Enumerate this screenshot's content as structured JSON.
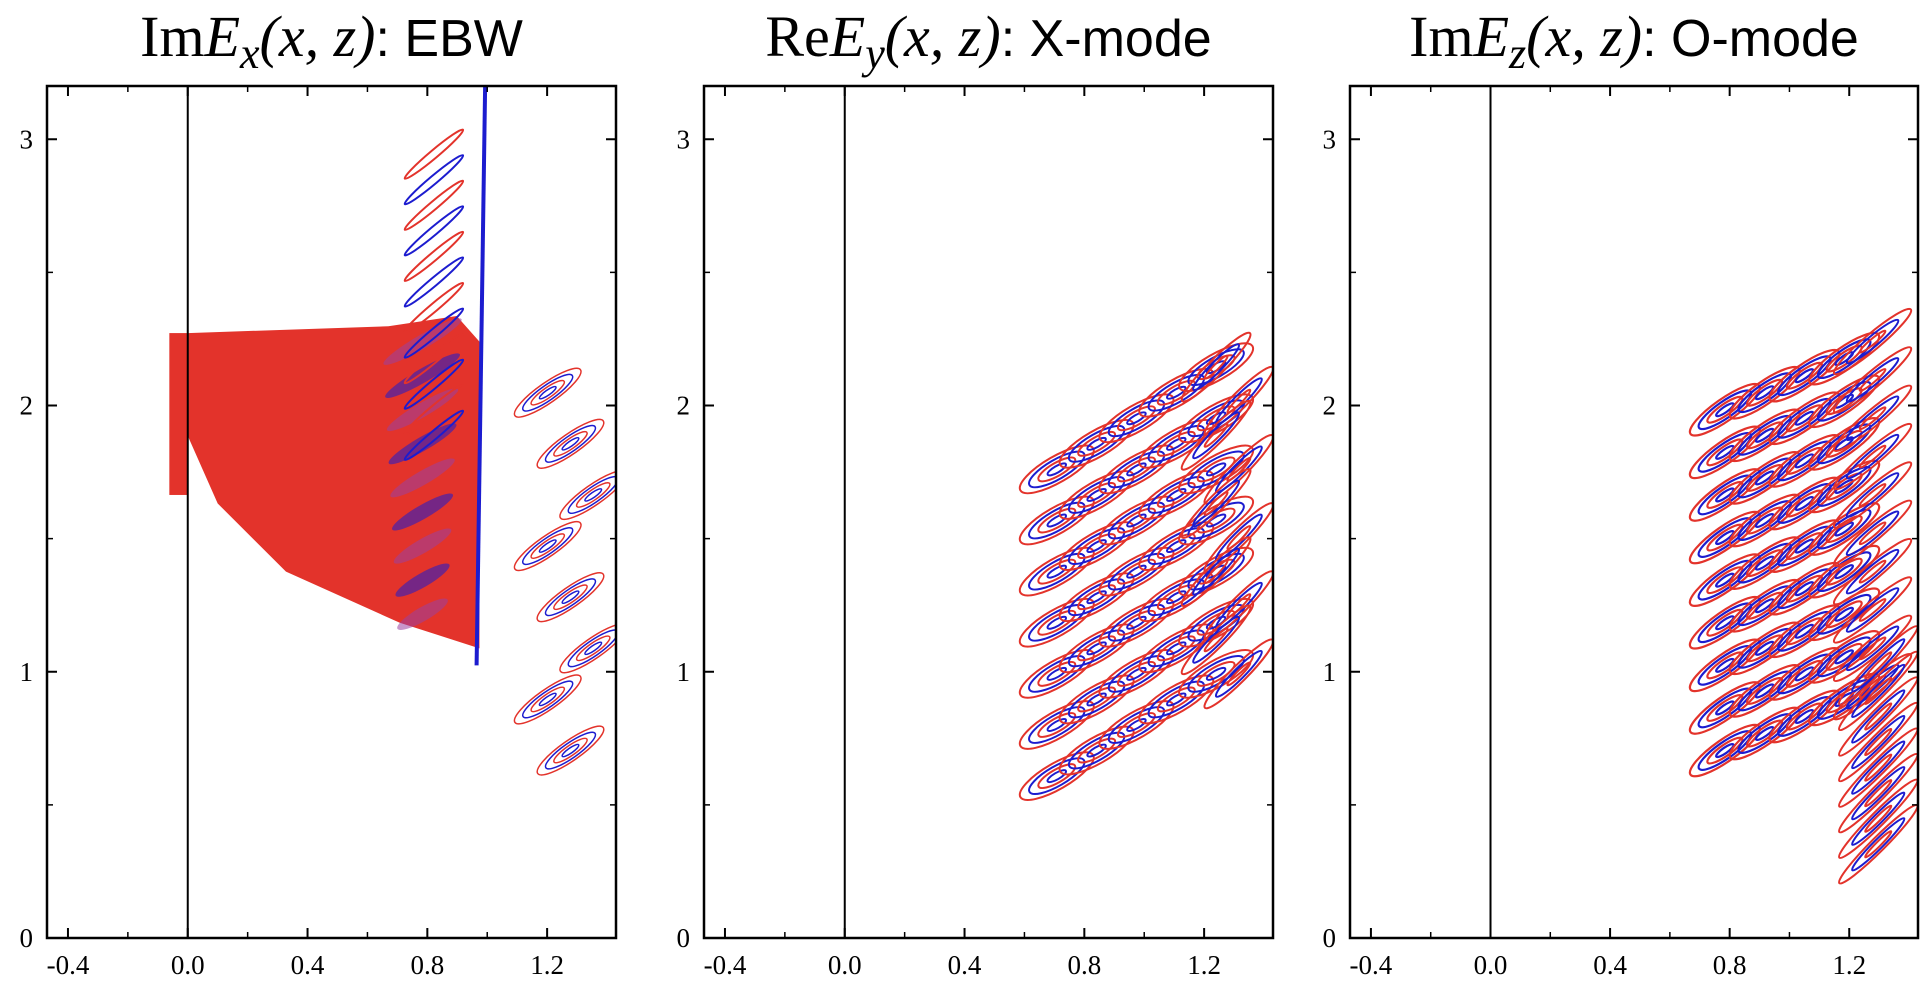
{
  "chart_data": [
    {
      "type": "contour",
      "title": {
        "op": "Im",
        "field": "E",
        "sub": "x",
        "args": "(x, z)",
        "mode": ": EBW"
      },
      "xlim": [
        -0.47,
        1.43
      ],
      "ylim": [
        0,
        3.2
      ],
      "xticks": [
        -0.4,
        {
          "value": 0,
          "label": "0.0"
        },
        0.4,
        0.8,
        1.2
      ],
      "yticks": [
        0,
        1,
        2,
        3
      ]
    },
    {
      "type": "contour",
      "title": {
        "op": "Re",
        "field": "E",
        "sub": "y",
        "args": "(x, z)",
        "mode": ": X-mode"
      },
      "xlim": [
        -0.47,
        1.43
      ],
      "ylim": [
        0,
        3.2
      ],
      "xticks": [
        -0.4,
        {
          "value": 0,
          "label": "0.0"
        },
        0.4,
        0.8,
        1.2
      ],
      "yticks": [
        0,
        1,
        2,
        3
      ]
    },
    {
      "type": "contour",
      "title": {
        "op": "Im",
        "field": "E",
        "sub": "z",
        "args": "(x, z)",
        "mode": ": O-mode"
      },
      "xlim": [
        -0.47,
        1.43
      ],
      "ylim": [
        0,
        3.2
      ],
      "xticks": [
        -0.4,
        {
          "value": 0,
          "label": "0.0"
        },
        0.4,
        0.8,
        1.2
      ],
      "yticks": [
        0,
        1,
        2,
        3
      ]
    }
  ]
}
